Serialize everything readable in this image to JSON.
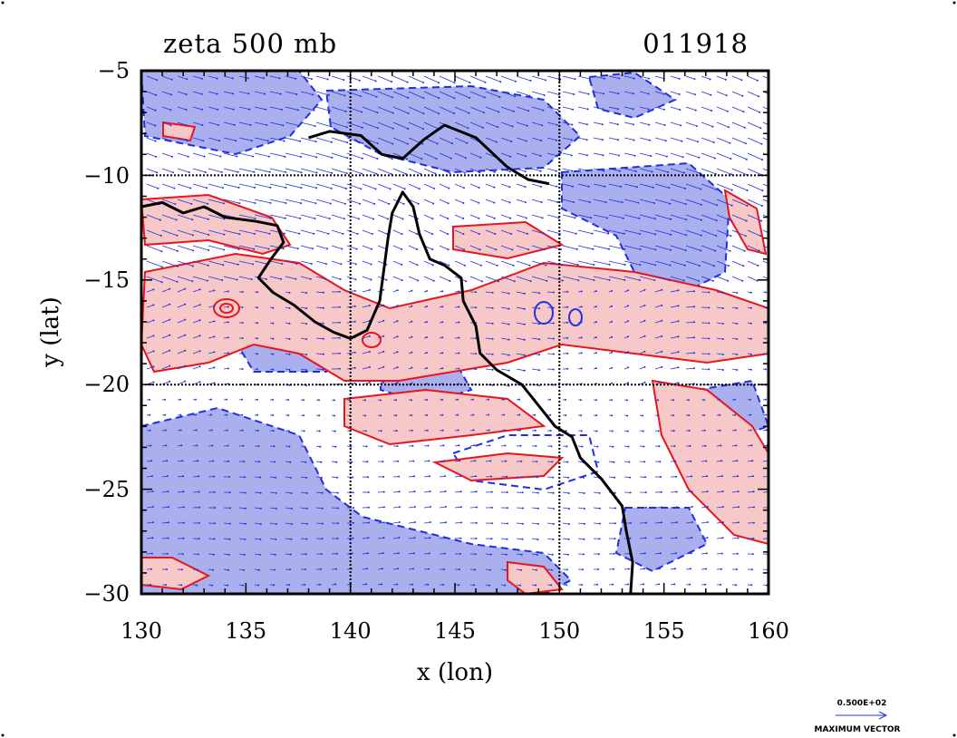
{
  "title": {
    "variable": "zeta 500 mb",
    "timestamp": "011918"
  },
  "axes": {
    "xlabel": "x (lon)",
    "ylabel": "y (lat)",
    "x_range": [
      130,
      160
    ],
    "y_range": [
      -30,
      -5
    ],
    "x_ticks": [
      "130",
      "135",
      "140",
      "145",
      "150",
      "155",
      "160"
    ],
    "y_ticks": [
      "-5",
      "-10",
      "-15",
      "-20",
      "-25",
      "-30"
    ],
    "gridlines_x": [
      140,
      150
    ],
    "gridlines_y": [
      -10,
      -20
    ]
  },
  "legend": {
    "max_vector_value": "0.500E+02",
    "max_vector_label": "MAXIMUM VECTOR"
  },
  "colors": {
    "positive_fill": "#f7c8c8",
    "positive_contour": "#e8141e",
    "negative_fill": "#aab0ee",
    "negative_contour": "#1f2fe0",
    "vector": "#2233dd",
    "coastline": "#000000"
  },
  "coastline": [
    [
      [
        138.0,
        -8.2
      ],
      [
        139.0,
        -7.9
      ],
      [
        140.5,
        -8.1
      ],
      [
        141.5,
        -9.0
      ],
      [
        142.5,
        -9.2
      ],
      [
        143.5,
        -8.3
      ],
      [
        144.5,
        -7.6
      ],
      [
        146.0,
        -8.2
      ],
      [
        147.5,
        -9.6
      ],
      [
        148.5,
        -10.2
      ],
      [
        149.5,
        -10.4
      ]
    ],
    [
      [
        130.0,
        -11.5
      ],
      [
        131.0,
        -11.3
      ],
      [
        132.0,
        -11.8
      ],
      [
        133.0,
        -11.5
      ],
      [
        134.0,
        -12.0
      ],
      [
        135.5,
        -12.2
      ],
      [
        136.5,
        -12.4
      ],
      [
        136.8,
        -13.2
      ],
      [
        136.2,
        -14.0
      ],
      [
        135.6,
        -14.9
      ],
      [
        136.3,
        -15.6
      ],
      [
        137.3,
        -16.2
      ],
      [
        138.3,
        -17.0
      ],
      [
        139.2,
        -17.5
      ],
      [
        140.0,
        -17.8
      ],
      [
        140.8,
        -17.4
      ],
      [
        141.4,
        -16.0
      ],
      [
        141.6,
        -14.5
      ],
      [
        141.8,
        -13.0
      ],
      [
        142.0,
        -11.8
      ],
      [
        142.5,
        -10.8
      ],
      [
        143.0,
        -11.5
      ],
      [
        143.3,
        -12.8
      ],
      [
        143.8,
        -14.0
      ],
      [
        144.5,
        -14.3
      ],
      [
        145.3,
        -14.9
      ],
      [
        145.4,
        -16.0
      ],
      [
        146.0,
        -17.2
      ],
      [
        146.2,
        -18.5
      ],
      [
        147.0,
        -19.3
      ],
      [
        148.2,
        -20.0
      ],
      [
        149.0,
        -21.0
      ],
      [
        149.8,
        -22.0
      ],
      [
        150.6,
        -22.5
      ],
      [
        151.0,
        -23.5
      ],
      [
        152.0,
        -24.5
      ],
      [
        153.0,
        -25.8
      ],
      [
        153.2,
        -27.0
      ],
      [
        153.5,
        -28.5
      ],
      [
        153.4,
        -30.0
      ]
    ]
  ]
}
